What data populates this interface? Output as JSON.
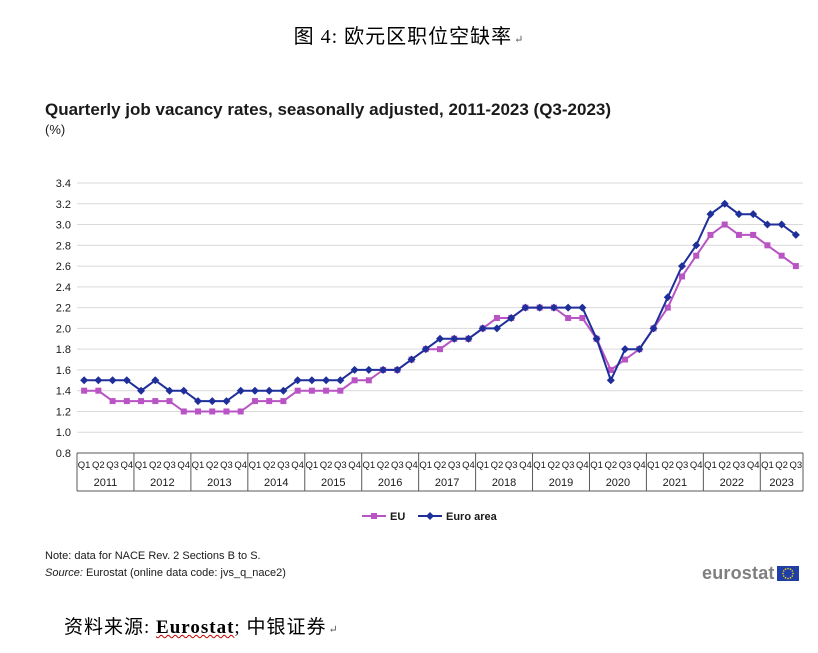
{
  "figure_caption": "图 4: 欧元区职位空缺率",
  "source_line": {
    "prefix": "资料来源: ",
    "eurostat": "Eurostat",
    "suffix": "; 中银证券"
  },
  "chart_note": "Note: data for NACE Rev. 2 Sections B to S.",
  "chart_source": {
    "label": "Source:",
    "text": " Eurostat (online data code: jvs_q_nace2)"
  },
  "logo_text": "eurostat",
  "colors": {
    "eu": "#b954c4",
    "euro_area": "#1f2f9a",
    "grid": "#d9d9d9",
    "logo_flag": "#1f3fa6",
    "logo_stars": "#ffdd00"
  },
  "chart_data": {
    "type": "line",
    "title": "Quarterly job vacancy rates, seasonally adjusted, 2011-2023 (Q3-2023)",
    "unit": "(%)",
    "xlabel": "",
    "ylabel": "",
    "ylim": [
      0.8,
      3.4
    ],
    "yticks": [
      "0.8",
      "1.0",
      "1.2",
      "1.4",
      "1.6",
      "1.8",
      "2.0",
      "2.2",
      "2.4",
      "2.6",
      "2.8",
      "3.0",
      "3.2",
      "3.4"
    ],
    "quarters": [
      "Q1",
      "Q2",
      "Q3",
      "Q4",
      "Q1",
      "Q2",
      "Q3",
      "Q4",
      "Q1",
      "Q2",
      "Q3",
      "Q4",
      "Q1",
      "Q2",
      "Q3",
      "Q4",
      "Q1",
      "Q2",
      "Q3",
      "Q4",
      "Q1",
      "Q2",
      "Q3",
      "Q4",
      "Q1",
      "Q2",
      "Q3",
      "Q4",
      "Q1",
      "Q2",
      "Q3",
      "Q4",
      "Q1",
      "Q2",
      "Q3",
      "Q4",
      "Q1",
      "Q2",
      "Q3",
      "Q4",
      "Q1",
      "Q2",
      "Q3",
      "Q4",
      "Q1",
      "Q2",
      "Q3",
      "Q4",
      "Q1",
      "Q2",
      "Q3"
    ],
    "years": [
      "2011",
      "2012",
      "2013",
      "2014",
      "2015",
      "2016",
      "2017",
      "2018",
      "2019",
      "2020",
      "2021",
      "2022",
      "2023"
    ],
    "grid": "horizontal",
    "legend_position": "bottom",
    "series": [
      {
        "name": "EU",
        "marker": "square",
        "values": [
          1.4,
          1.4,
          1.3,
          1.3,
          1.3,
          1.3,
          1.3,
          1.2,
          1.2,
          1.2,
          1.2,
          1.2,
          1.3,
          1.3,
          1.3,
          1.4,
          1.4,
          1.4,
          1.4,
          1.5,
          1.5,
          1.6,
          1.6,
          1.7,
          1.8,
          1.8,
          1.9,
          1.9,
          2.0,
          2.1,
          2.1,
          2.2,
          2.2,
          2.2,
          2.1,
          2.1,
          1.9,
          1.6,
          1.7,
          1.8,
          2.0,
          2.2,
          2.5,
          2.7,
          2.9,
          3.0,
          2.9,
          2.9,
          2.8,
          2.7,
          2.6
        ]
      },
      {
        "name": "Euro area",
        "marker": "diamond",
        "values": [
          1.5,
          1.5,
          1.5,
          1.5,
          1.4,
          1.5,
          1.4,
          1.4,
          1.3,
          1.3,
          1.3,
          1.4,
          1.4,
          1.4,
          1.4,
          1.5,
          1.5,
          1.5,
          1.5,
          1.6,
          1.6,
          1.6,
          1.6,
          1.7,
          1.8,
          1.9,
          1.9,
          1.9,
          2.0,
          2.0,
          2.1,
          2.2,
          2.2,
          2.2,
          2.2,
          2.2,
          1.9,
          1.5,
          1.8,
          1.8,
          2.0,
          2.3,
          2.6,
          2.8,
          3.1,
          3.2,
          3.1,
          3.1,
          3.0,
          3.0,
          2.9
        ]
      }
    ]
  }
}
